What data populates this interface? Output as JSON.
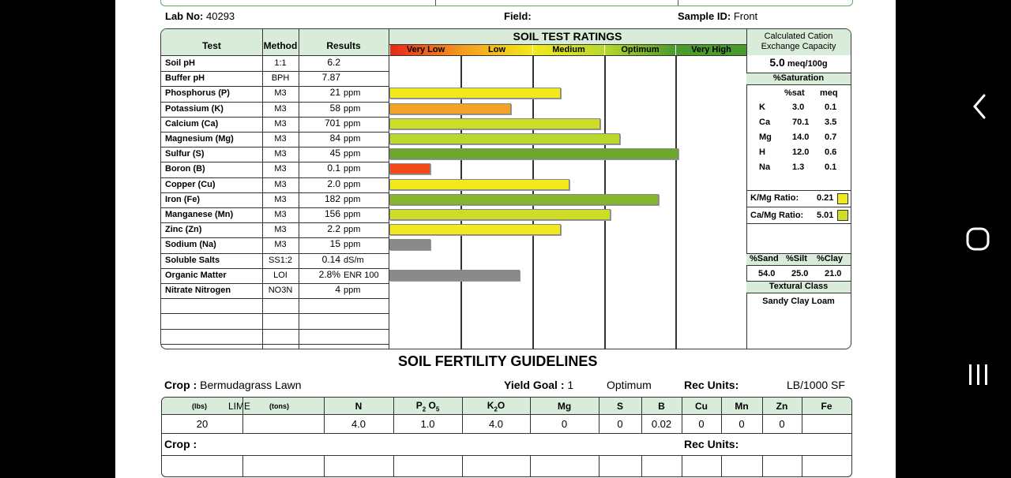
{
  "header": {
    "lab_no_label": "Lab No:",
    "lab_no": "40293",
    "field_label": "Field:",
    "field_value": "",
    "sample_label": "Sample ID:",
    "sample_id": "Front"
  },
  "table_headers": {
    "test": "Test",
    "method": "Method",
    "results": "Results",
    "ratings_title": "SOIL TEST RATINGS",
    "cec_title": "Calculated Cation Exchange Capacity"
  },
  "rating_levels": [
    {
      "label": "Very Low",
      "color": "#e8261a"
    },
    {
      "label": "Low",
      "color": "#f39a1d"
    },
    {
      "label": "Medium",
      "color": "#f2ea1c"
    },
    {
      "label": "Optimum",
      "color": "#b9d82e"
    },
    {
      "label": "Very High",
      "color": "#4a9a2c"
    }
  ],
  "tests": [
    {
      "test": "Soil pH",
      "method": "1:1",
      "value": "6.2",
      "unit": "",
      "bar_fraction": null,
      "bar_color": ""
    },
    {
      "test": "Buffer pH",
      "method": "BPH",
      "value": "7.87",
      "unit": "",
      "bar_fraction": null,
      "bar_color": ""
    },
    {
      "test": "Phosphorus (P)",
      "method": "M3",
      "value": "21",
      "unit": "ppm",
      "bar_fraction": 0.48,
      "bar_color": "#f3ea1e"
    },
    {
      "test": "Potassium (K)",
      "method": "M3",
      "value": "58",
      "unit": "ppm",
      "bar_fraction": 0.34,
      "bar_color": "#f3a325"
    },
    {
      "test": "Calcium (Ca)",
      "method": "M3",
      "value": "701",
      "unit": "ppm",
      "bar_fraction": 0.59,
      "bar_color": "#cede27"
    },
    {
      "test": "Magnesium (Mg)",
      "method": "M3",
      "value": "84",
      "unit": "ppm",
      "bar_fraction": 0.645,
      "bar_color": "#b9d82e"
    },
    {
      "test": "Sulfur (S)",
      "method": "M3",
      "value": "45",
      "unit": "ppm",
      "bar_fraction": 0.81,
      "bar_color": "#6aa72a"
    },
    {
      "test": "Boron (B)",
      "method": "M3",
      "value": "0.1",
      "unit": "ppm",
      "bar_fraction": 0.115,
      "bar_color": "#f04a1a"
    },
    {
      "test": "Copper (Cu)",
      "method": "M3",
      "value": "2.0",
      "unit": "ppm",
      "bar_fraction": 0.505,
      "bar_color": "#f3ea1e"
    },
    {
      "test": "Iron (Fe)",
      "method": "M3",
      "value": "182",
      "unit": "ppm",
      "bar_fraction": 0.755,
      "bar_color": "#86b62c"
    },
    {
      "test": "Manganese (Mn)",
      "method": "M3",
      "value": "156",
      "unit": "ppm",
      "bar_fraction": 0.62,
      "bar_color": "#cede27"
    },
    {
      "test": "Zinc (Zn)",
      "method": "M3",
      "value": "2.2",
      "unit": "ppm",
      "bar_fraction": 0.48,
      "bar_color": "#f3ea1e"
    },
    {
      "test": "Sodium (Na)",
      "method": "M3",
      "value": "15",
      "unit": "ppm",
      "bar_fraction": 0.115,
      "bar_color": "#8a8a8a"
    },
    {
      "test": "Soluble Salts",
      "method": "SS1:2",
      "value": "0.14",
      "unit": "dS/m",
      "bar_fraction": null,
      "bar_color": ""
    },
    {
      "test": "Organic Matter",
      "method": "LOI",
      "value": "2.8%",
      "unit": "ENR 100",
      "bar_fraction": 0.365,
      "bar_color": "#8a8a8a"
    },
    {
      "test": "Nitrate Nitrogen",
      "method": "NO3N",
      "value": "4",
      "unit": "ppm",
      "bar_fraction": null,
      "bar_color": ""
    }
  ],
  "cec": {
    "value": "5.0",
    "unit": "meq/100g",
    "saturation_title": "%Saturation",
    "col_sat": "%sat",
    "col_meq": "meq",
    "rows": [
      {
        "ion": "K",
        "sat": "3.0",
        "meq": "0.1"
      },
      {
        "ion": "Ca",
        "sat": "70.1",
        "meq": "3.5"
      },
      {
        "ion": "Mg",
        "sat": "14.0",
        "meq": "0.7"
      },
      {
        "ion": "H",
        "sat": "12.0",
        "meq": "0.6"
      },
      {
        "ion": "Na",
        "sat": "1.3",
        "meq": "0.1"
      }
    ],
    "k_mg_label": "K/Mg Ratio:",
    "k_mg_value": "0.21",
    "k_mg_color": "#f3ea1e",
    "ca_mg_label": "Ca/Mg Ratio:",
    "ca_mg_value": "5.01",
    "ca_mg_color": "#cede27"
  },
  "texture": {
    "sand_label": "%Sand",
    "silt_label": "%Silt",
    "clay_label": "%Clay",
    "sand": "54.0",
    "silt": "25.0",
    "clay": "21.0",
    "class_title": "Textural Class",
    "class_value": "Sandy Clay Loam"
  },
  "guidelines": {
    "title": "SOIL FERTILITY GUIDELINES",
    "crop_label": "Crop :",
    "crop": "Bermudagrass Lawn",
    "yield_label": "Yield Goal :",
    "yield_value": "1",
    "yield_text": "Optimum",
    "rec_units_label": "Rec Units:",
    "rec_units": "LB/1000 SF",
    "crop2_label": "Crop :",
    "rec_units2_label": "Rec Units:",
    "lime_lbs": "(lbs)",
    "lime_label": "LIME",
    "lime_tons": "(tons)",
    "col_n": "N",
    "col_p": "P",
    "col_p_sub1": "2",
    "col_p_o": "O",
    "col_p_sub2": "5",
    "col_k": "K",
    "col_k_sub": "2",
    "col_k_o": "O",
    "col_mg": "Mg",
    "col_s": "S",
    "col_b": "B",
    "col_cu": "Cu",
    "col_mn": "Mn",
    "col_zn": "Zn",
    "col_fe": "Fe",
    "row": {
      "lime_lbs": "20",
      "lime_tons": "",
      "n": "4.0",
      "p2o5": "1.0",
      "k2o": "4.0",
      "mg": "0",
      "s": "0",
      "b": "0.02",
      "cu": "0",
      "mn": "0",
      "zn": "0",
      "fe": ""
    }
  }
}
